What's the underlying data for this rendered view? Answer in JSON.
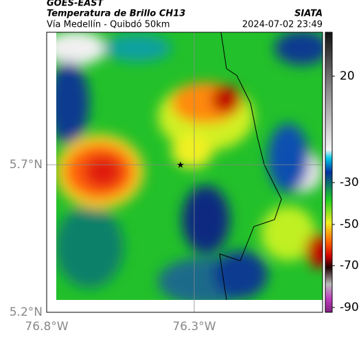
{
  "header": {
    "source": "GOES-EAST",
    "title": "Temperatura de Brillo CH13",
    "region": "Vía Medellín - Quibdó 50km",
    "organization": "SIATA",
    "datetime": "2024-07-02 23:49"
  },
  "map": {
    "xticks": [
      "76.8°W",
      "76.3°W"
    ],
    "yticks": [
      "5.7°N",
      "5.2°N"
    ]
  },
  "colorbar": {
    "ticks": [
      "20",
      "-30",
      "-50",
      "-70",
      "-90"
    ]
  }
}
